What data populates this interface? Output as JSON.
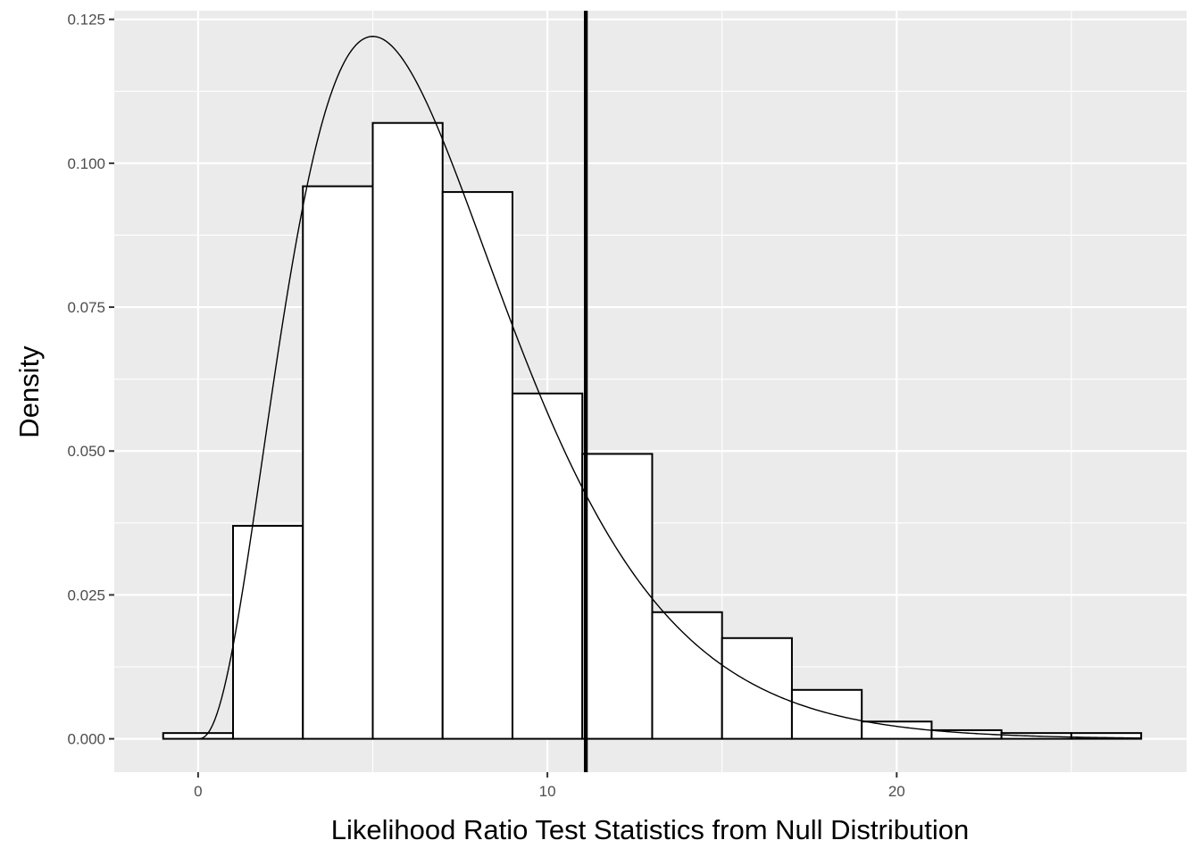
{
  "chart_data": {
    "type": "bar",
    "title": "",
    "xlabel": "Likelihood Ratio Test Statistics from Null Distribution",
    "ylabel": "Density",
    "xlim": [
      -2.4,
      28.3
    ],
    "ylim": [
      -0.0058,
      0.1265
    ],
    "x_ticks": [
      0,
      10,
      20
    ],
    "x_tick_labels": [
      "0",
      "10",
      "20"
    ],
    "x_minor_ticks": [
      5,
      15,
      25
    ],
    "y_ticks": [
      0,
      0.025,
      0.05,
      0.075,
      0.1,
      0.125
    ],
    "y_tick_labels": [
      "0.000",
      "0.025",
      "0.050",
      "0.075",
      "0.100",
      "0.125"
    ],
    "y_minor_ticks": [
      0.0125,
      0.0375,
      0.0625,
      0.0875,
      0.1125
    ],
    "grid": true,
    "histogram": {
      "bin_width": 2,
      "bins": [
        {
          "xmin": -1,
          "xmax": 1,
          "density": 0.001
        },
        {
          "xmin": 1,
          "xmax": 3,
          "density": 0.037
        },
        {
          "xmin": 3,
          "xmax": 5,
          "density": 0.096
        },
        {
          "xmin": 5,
          "xmax": 7,
          "density": 0.107
        },
        {
          "xmin": 7,
          "xmax": 9,
          "density": 0.095
        },
        {
          "xmin": 9,
          "xmax": 11,
          "density": 0.06
        },
        {
          "xmin": 11,
          "xmax": 13,
          "density": 0.0495
        },
        {
          "xmin": 13,
          "xmax": 15,
          "density": 0.022
        },
        {
          "xmin": 15,
          "xmax": 17,
          "density": 0.0175
        },
        {
          "xmin": 17,
          "xmax": 19,
          "density": 0.0085
        },
        {
          "xmin": 19,
          "xmax": 21,
          "density": 0.003
        },
        {
          "xmin": 21,
          "xmax": 23,
          "density": 0.0015
        },
        {
          "xmin": 23,
          "xmax": 25,
          "density": 0.001
        },
        {
          "xmin": 25,
          "xmax": 27,
          "density": 0.001
        }
      ]
    },
    "density_curve": {
      "distribution": "chi-square",
      "df": 7,
      "x_range": [
        0,
        27
      ]
    },
    "reference_line": {
      "orientation": "vertical",
      "x": 11.1
    }
  },
  "colors": {
    "panel_background": "#ebebeb",
    "grid": "#ffffff",
    "bar_fill": "#ffffff",
    "bar_outline": "#000000",
    "curve": "#000000",
    "reference_line": "#000000",
    "tick_text": "#4d4d4d",
    "tick_mark": "#333333",
    "title_text": "#000000"
  }
}
